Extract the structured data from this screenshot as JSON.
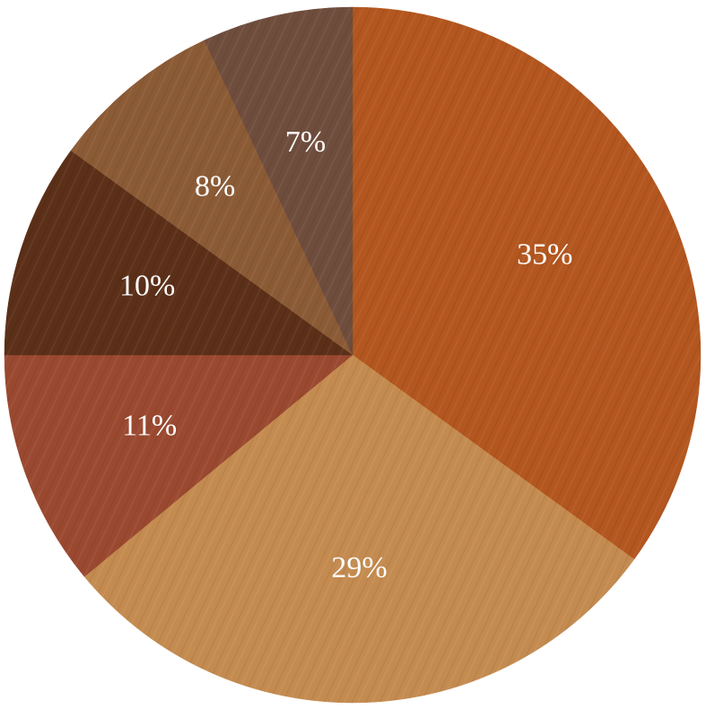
{
  "chart_data": {
    "type": "pie",
    "values": [
      35,
      29,
      11,
      10,
      8,
      7
    ],
    "value_labels": [
      "35%",
      "29%",
      "11%",
      "10%",
      "8%",
      "7%"
    ],
    "colors": [
      "#b3561f",
      "#c48b50",
      "#9a4930",
      "#5b2f18",
      "#8b5b36",
      "#6f4d3d"
    ]
  }
}
